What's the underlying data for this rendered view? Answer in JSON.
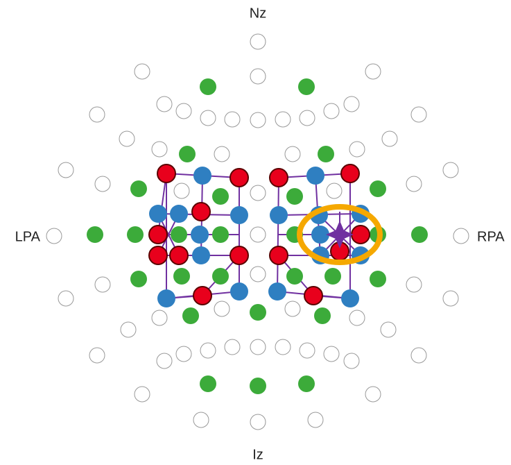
{
  "landmarks": {
    "nasion": "Nz",
    "left": "LPA",
    "right": "RPA",
    "inion": "Iz"
  }
}
